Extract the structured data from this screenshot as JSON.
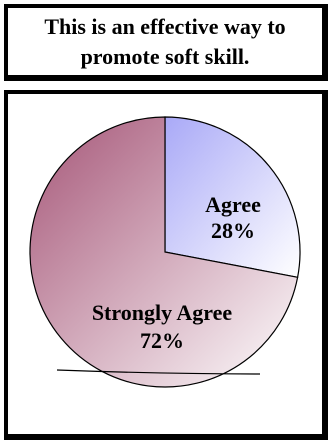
{
  "chart_data": {
    "type": "pie",
    "title": "This is an effective way to promote soft skill.",
    "slices": [
      {
        "label": "Agree",
        "value": 28,
        "value_label": "28%",
        "color": "#b0b0f8"
      },
      {
        "label": "Strongly Agree",
        "value": 72,
        "value_label": "72%",
        "color": "#a8607e"
      }
    ]
  }
}
